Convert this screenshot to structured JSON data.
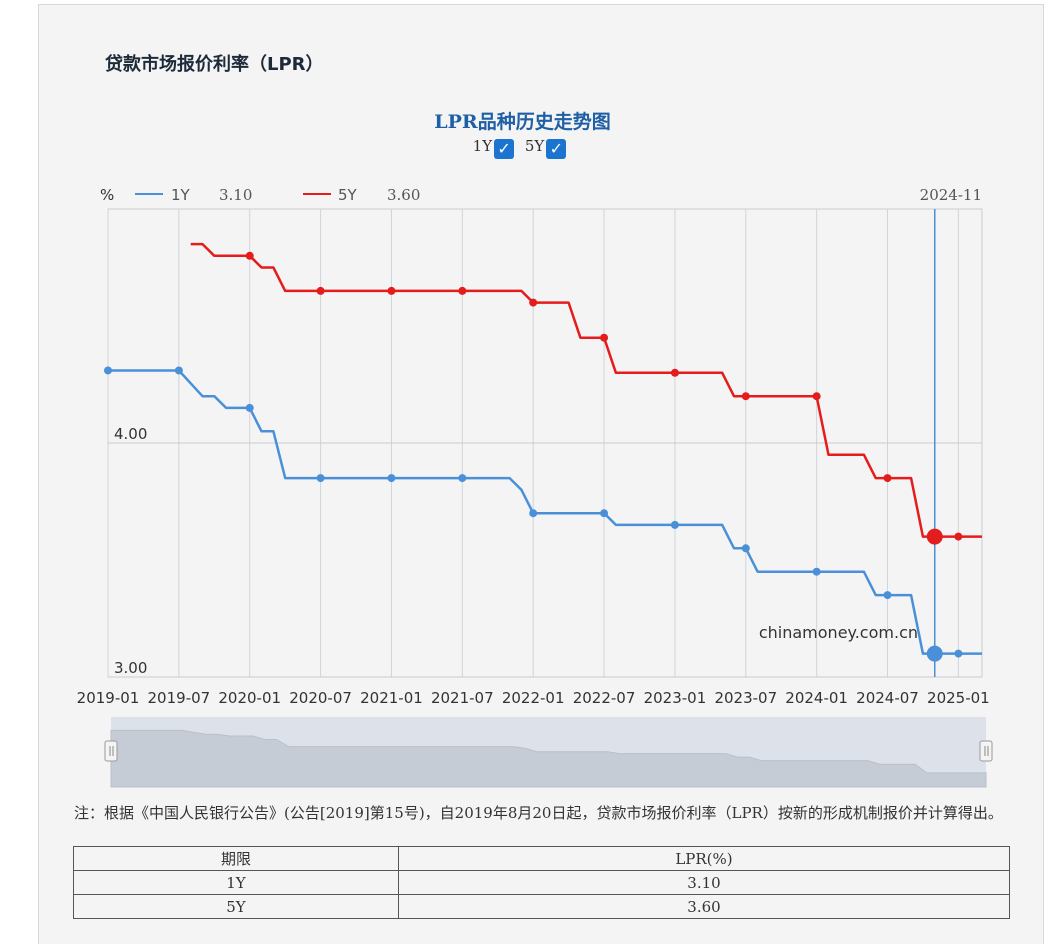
{
  "section_title": "贷款市场报价利率（LPR）",
  "chart_title": "LPR品种历史走势图",
  "toggles": [
    {
      "label": "1Y",
      "checked": true,
      "mark": "✓"
    },
    {
      "label": "5Y",
      "checked": true,
      "mark": "✓"
    }
  ],
  "colors": {
    "1Y": "#4a90d9",
    "5Y": "#e41c1c",
    "crosshair": "#4a90d9",
    "grid": "#d0d5d8"
  },
  "legend": [
    {
      "name": "1Y",
      "value": "3.10"
    },
    {
      "name": "5Y",
      "value": "3.60"
    }
  ],
  "y_unit": "%",
  "crosshair_label": "2024-11",
  "watermark": "chinamoney.com.cn",
  "chart_data": {
    "type": "line",
    "title": "LPR品种历史走势图",
    "xlabel": "",
    "ylabel": "%",
    "x_ticks": [
      "2019-01",
      "2019-07",
      "2020-01",
      "2020-07",
      "2021-01",
      "2021-07",
      "2022-01",
      "2022-07",
      "2023-01",
      "2023-07",
      "2024-01",
      "2024-07",
      "2025-01"
    ],
    "y_ticks": [
      "3.00",
      "4.00"
    ],
    "ylim": [
      3.0,
      5.0
    ],
    "xlim": [
      "2019-01",
      "2025-03"
    ],
    "grid": true,
    "highlight_date": "2024-11",
    "series": [
      {
        "name": "1Y",
        "points": [
          [
            "2019-01",
            4.31
          ],
          [
            "2019-07",
            4.31
          ],
          [
            "2019-09",
            4.2
          ],
          [
            "2019-10",
            4.2
          ],
          [
            "2019-11",
            4.15
          ],
          [
            "2019-12",
            4.15
          ],
          [
            "2020-01",
            4.15
          ],
          [
            "2020-02",
            4.05
          ],
          [
            "2020-03",
            4.05
          ],
          [
            "2020-04",
            3.85
          ],
          [
            "2020-07",
            3.85
          ],
          [
            "2021-01",
            3.85
          ],
          [
            "2021-07",
            3.85
          ],
          [
            "2021-11",
            3.85
          ],
          [
            "2021-12",
            3.8
          ],
          [
            "2022-01",
            3.7
          ],
          [
            "2022-07",
            3.7
          ],
          [
            "2022-08",
            3.65
          ],
          [
            "2023-01",
            3.65
          ],
          [
            "2023-05",
            3.65
          ],
          [
            "2023-06",
            3.55
          ],
          [
            "2023-07",
            3.55
          ],
          [
            "2023-08",
            3.45
          ],
          [
            "2024-01",
            3.45
          ],
          [
            "2024-05",
            3.45
          ],
          [
            "2024-06",
            3.35
          ],
          [
            "2024-07",
            3.35
          ],
          [
            "2024-08",
            3.35
          ],
          [
            "2024-09",
            3.35
          ],
          [
            "2024-10",
            3.1
          ],
          [
            "2024-11",
            3.1
          ],
          [
            "2025-01",
            3.1
          ],
          [
            "2025-03",
            3.1
          ]
        ]
      },
      {
        "name": "5Y",
        "points": [
          [
            "2019-08",
            4.85
          ],
          [
            "2019-09",
            4.85
          ],
          [
            "2019-10",
            4.8
          ],
          [
            "2019-11",
            4.8
          ],
          [
            "2020-01",
            4.8
          ],
          [
            "2020-02",
            4.75
          ],
          [
            "2020-03",
            4.75
          ],
          [
            "2020-04",
            4.65
          ],
          [
            "2020-07",
            4.65
          ],
          [
            "2021-01",
            4.65
          ],
          [
            "2021-07",
            4.65
          ],
          [
            "2021-12",
            4.65
          ],
          [
            "2022-01",
            4.6
          ],
          [
            "2022-04",
            4.6
          ],
          [
            "2022-05",
            4.45
          ],
          [
            "2022-07",
            4.45
          ],
          [
            "2022-08",
            4.3
          ],
          [
            "2023-01",
            4.3
          ],
          [
            "2023-05",
            4.3
          ],
          [
            "2023-06",
            4.2
          ],
          [
            "2023-07",
            4.2
          ],
          [
            "2024-01",
            4.2
          ],
          [
            "2024-02",
            3.95
          ],
          [
            "2024-05",
            3.95
          ],
          [
            "2024-06",
            3.85
          ],
          [
            "2024-07",
            3.85
          ],
          [
            "2024-08",
            3.85
          ],
          [
            "2024-09",
            3.85
          ],
          [
            "2024-10",
            3.6
          ],
          [
            "2024-11",
            3.6
          ],
          [
            "2025-01",
            3.6
          ],
          [
            "2025-03",
            3.6
          ]
        ]
      }
    ]
  },
  "note": "注：根据《中国人民银行公告》(公告[2019]第15号)，自2019年8月20日起，贷款市场报价利率（LPR）按新的形成机制报价并计算得出。",
  "table": {
    "headers": [
      "期限",
      "LPR(%)"
    ],
    "rows": [
      [
        "1Y",
        "3.10"
      ],
      [
        "5Y",
        "3.60"
      ]
    ]
  }
}
